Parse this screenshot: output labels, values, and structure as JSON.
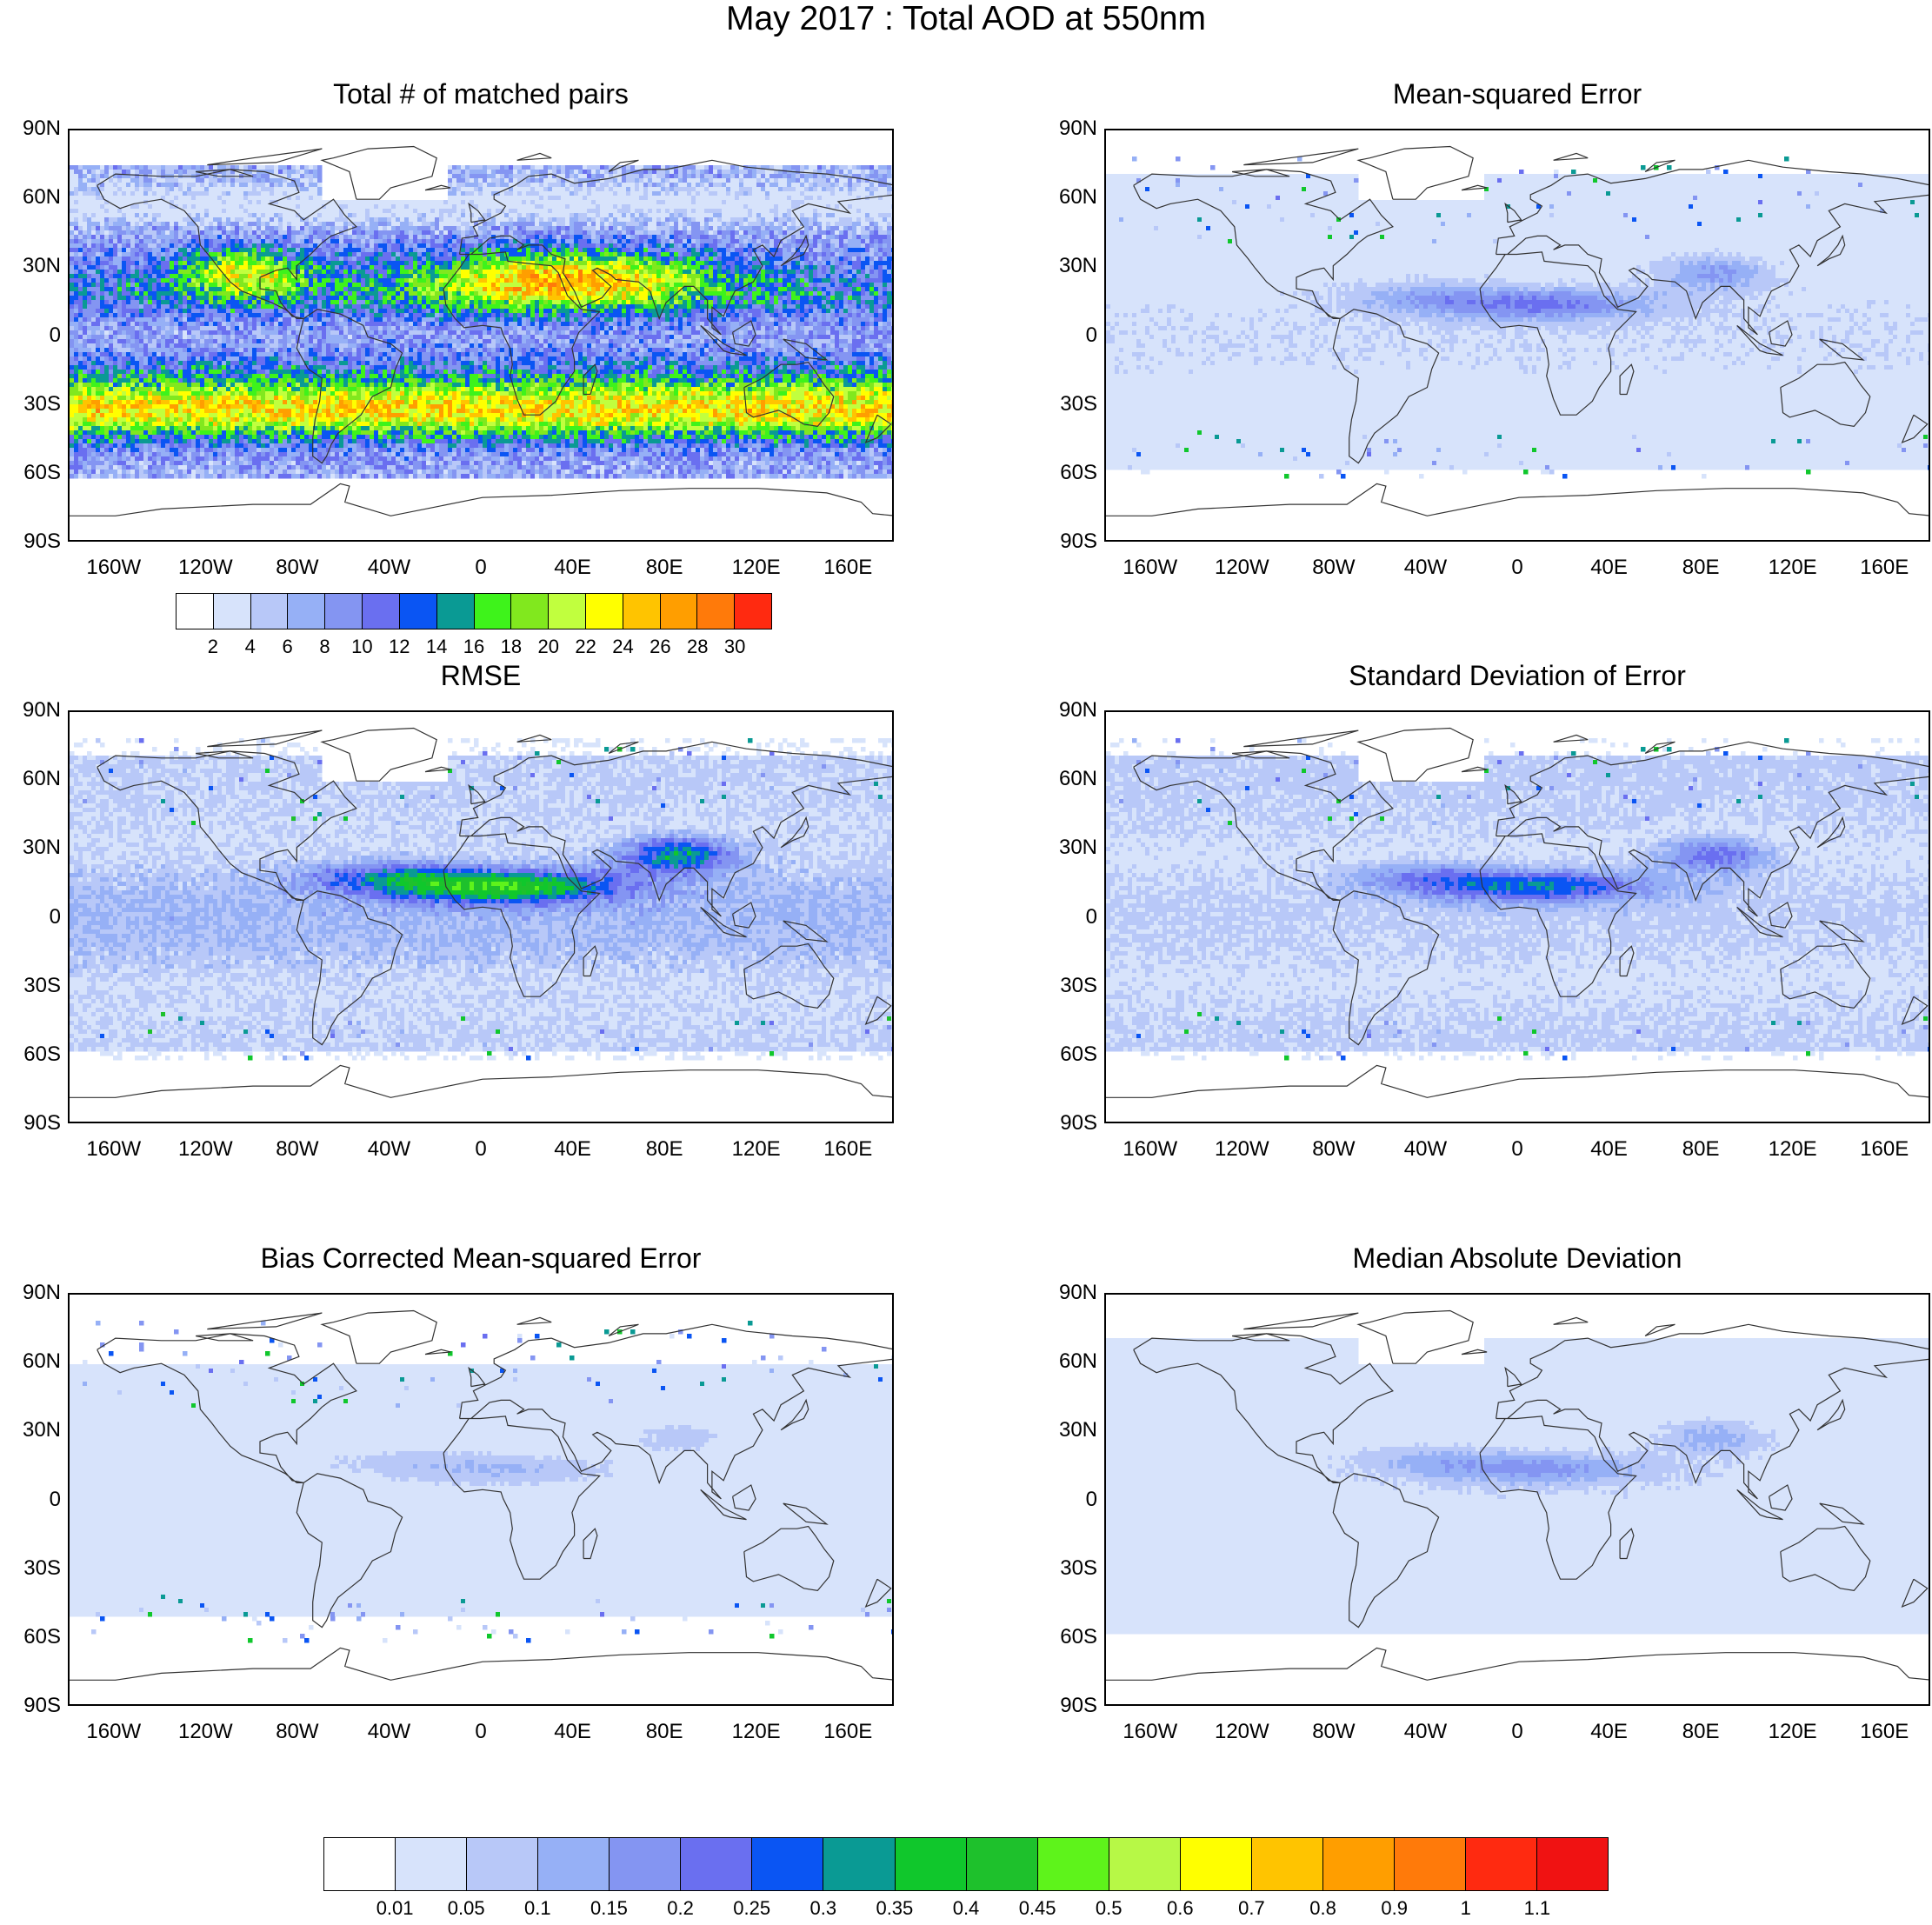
{
  "title": "May 2017 : Total AOD at 550nm",
  "lat_labels": [
    "90N",
    "60N",
    "30N",
    "0",
    "30S",
    "60S",
    "90S"
  ],
  "lon_labels": [
    "160W",
    "120W",
    "80W",
    "40W",
    "0",
    "40E",
    "80E",
    "120E",
    "160E"
  ],
  "panels": [
    {
      "title": "Total # of matched pairs",
      "field": "count"
    },
    {
      "title": "Mean-squared Error",
      "field": "mse"
    },
    {
      "title": "RMSE",
      "field": "rmse"
    },
    {
      "title": "Standard Deviation of Error",
      "field": "sde"
    },
    {
      "title": "Bias Corrected Mean-squared Error",
      "field": "bcmse"
    },
    {
      "title": "Median Absolute Deviation",
      "field": "mad"
    }
  ],
  "colorbar_count": {
    "labels": [
      "2",
      "4",
      "6",
      "8",
      "10",
      "12",
      "14",
      "16",
      "18",
      "20",
      "22",
      "24",
      "26",
      "28",
      "30"
    ],
    "colors": [
      "#ffffff",
      "#d7e3fb",
      "#b8c8f8",
      "#96b0f6",
      "#8495f2",
      "#6a6ff0",
      "#0a55f3",
      "#0a9a94",
      "#3ef31b",
      "#81e81e",
      "#c1ff3e",
      "#ffff00",
      "#ffc400",
      "#ff9e00",
      "#ff7a0a",
      "#ff2a10"
    ]
  },
  "colorbar_error": {
    "labels": [
      "0.01",
      "0.05",
      "0.1",
      "0.15",
      "0.2",
      "0.25",
      "0.3",
      "0.35",
      "0.4",
      "0.45",
      "0.5",
      "0.6",
      "0.7",
      "0.8",
      "0.9",
      "1",
      "1.1"
    ],
    "colors": [
      "#ffffff",
      "#d7e3fb",
      "#b8c8f8",
      "#96b0f6",
      "#8495f2",
      "#6a6ff0",
      "#0a55f3",
      "#0a9a94",
      "#10c72c",
      "#1ec12c",
      "#5ef31b",
      "#b7f846",
      "#ffff00",
      "#ffc400",
      "#ff9e00",
      "#ff7a0a",
      "#ff2a10",
      "#f01212"
    ]
  }
}
